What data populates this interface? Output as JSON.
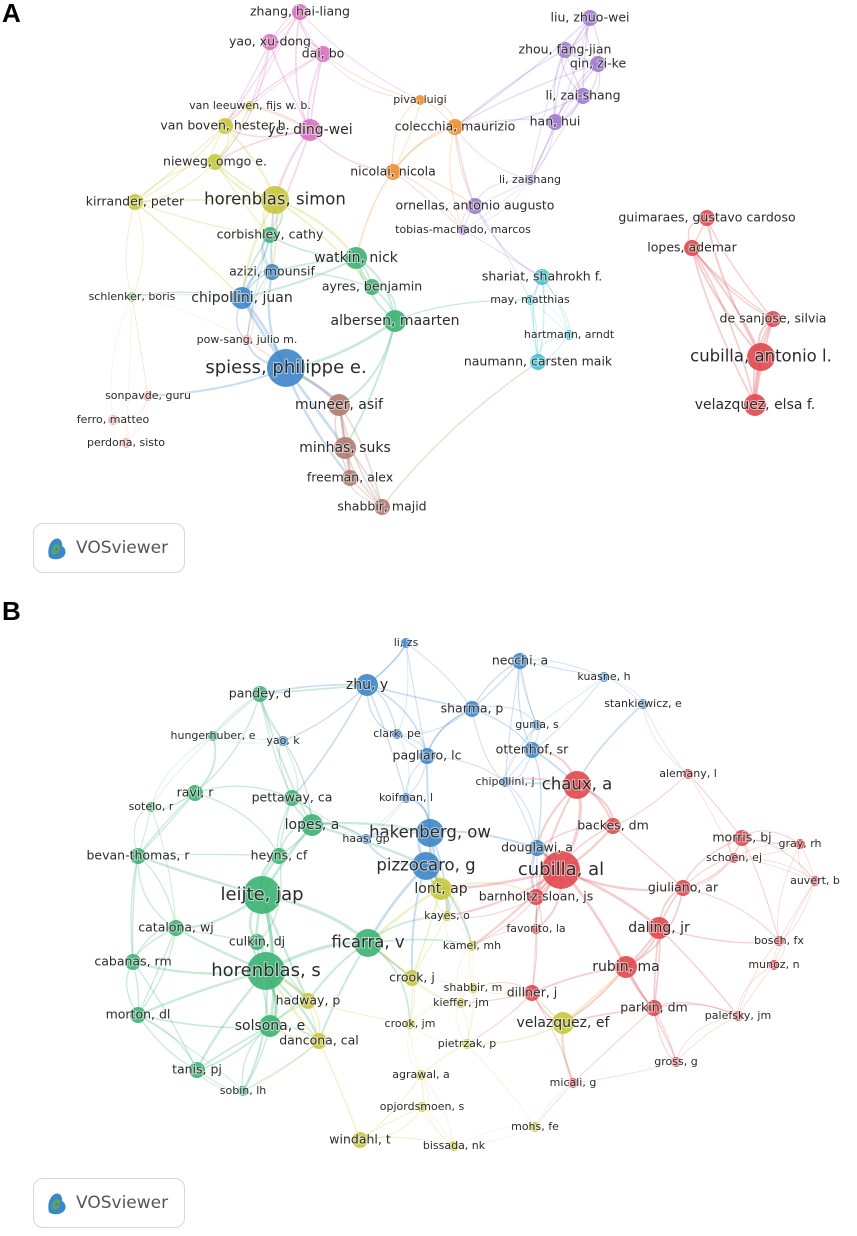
{
  "colors": {
    "red": "#e0474c",
    "green": "#3bb273",
    "blue": "#3c86c8",
    "yellow": "#c8c83a",
    "purple": "#a079cf",
    "orange": "#ef8e2c",
    "pink": "#d96fc0",
    "cyan": "#3cc2d3",
    "brown": "#b07a6e",
    "rose": "#f1a9a9",
    "lightgreen": "#8fd37a"
  },
  "watermark": {
    "label": "VOSviewer"
  },
  "panels": [
    {
      "letter": "A",
      "nodes": [
        {
          "label": "zhang, hai-liang",
          "c": "pink",
          "s": 1
        },
        {
          "label": "yao, xu-dong",
          "c": "pink",
          "s": 1
        },
        {
          "label": "dai, bo",
          "c": "pink",
          "s": 1
        },
        {
          "label": "ye, ding-wei",
          "c": "pink",
          "s": 2
        },
        {
          "label": "liu, zhuo-wei",
          "c": "purple",
          "s": 1
        },
        {
          "label": "zhou, fang-jian",
          "c": "purple",
          "s": 1
        },
        {
          "label": "qin, zi-ke",
          "c": "purple",
          "s": 1
        },
        {
          "label": "li, zai-shang",
          "c": "purple",
          "s": 1
        },
        {
          "label": "han, hui",
          "c": "purple",
          "s": 1
        },
        {
          "label": "li, zaishang",
          "c": "purple",
          "s": 0
        },
        {
          "label": "piva, luigi",
          "c": "orange",
          "s": 0
        },
        {
          "label": "colecchia, maurizio",
          "c": "orange",
          "s": 1
        },
        {
          "label": "nicolai, nicola",
          "c": "orange",
          "s": 1
        },
        {
          "label": "ornellas, antonio augusto",
          "c": "purple",
          "s": 1
        },
        {
          "label": "tobias-machado, marcos",
          "c": "purple",
          "s": 0
        },
        {
          "label": "van leeuwen, fijs w. b.",
          "c": "yellow",
          "s": 0
        },
        {
          "label": "van boven, hester h.",
          "c": "yellow",
          "s": 1
        },
        {
          "label": "nieweg, omgo e.",
          "c": "yellow",
          "s": 1
        },
        {
          "label": "kirrander, peter",
          "c": "yellow",
          "s": 1
        },
        {
          "label": "horenblas, simon",
          "c": "yellow",
          "s": 3
        },
        {
          "label": "corbishley, cathy",
          "c": "green",
          "s": 1
        },
        {
          "label": "watkin, nick",
          "c": "green",
          "s": 2
        },
        {
          "label": "azizi, mounsif",
          "c": "blue",
          "s": 1
        },
        {
          "label": "ayres, benjamin",
          "c": "green",
          "s": 1
        },
        {
          "label": "chipollini, juan",
          "c": "blue",
          "s": 2
        },
        {
          "label": "albersen, maarten",
          "c": "green",
          "s": 2
        },
        {
          "label": "schlenker, boris",
          "c": "lightgreen",
          "s": 0
        },
        {
          "label": "pow-sang, julio m.",
          "c": "rose",
          "s": 0
        },
        {
          "label": "spiess, philippe e.",
          "c": "blue",
          "s": 4
        },
        {
          "label": "muneer, asif",
          "c": "brown",
          "s": 2
        },
        {
          "label": "sonpavde, guru",
          "c": "rose",
          "s": 0
        },
        {
          "label": "ferro, matteo",
          "c": "rose",
          "s": 0
        },
        {
          "label": "perdona, sisto",
          "c": "rose",
          "s": 0
        },
        {
          "label": "minhas, suks",
          "c": "brown",
          "s": 2
        },
        {
          "label": "freeman, alex",
          "c": "brown",
          "s": 1
        },
        {
          "label": "shabbir, majid",
          "c": "brown",
          "s": 1
        },
        {
          "label": "shariat, shahrokh f.",
          "c": "cyan",
          "s": 1
        },
        {
          "label": "may, matthias",
          "c": "cyan",
          "s": 0
        },
        {
          "label": "hartmann, arndt",
          "c": "cyan",
          "s": 0
        },
        {
          "label": "naumann, carsten maik",
          "c": "cyan",
          "s": 1
        },
        {
          "label": "guimaraes, gustavo cardoso",
          "c": "red",
          "s": 1
        },
        {
          "label": "lopes, ademar",
          "c": "red",
          "s": 1
        },
        {
          "label": "de sanjose, silvia",
          "c": "red",
          "s": 1
        },
        {
          "label": "cubilla, antonio l.",
          "c": "red",
          "s": 3
        },
        {
          "label": "velazquez, elsa f.",
          "c": "red",
          "s": 2
        }
      ]
    },
    {
      "letter": "B",
      "nodes": [
        {
          "label": "li, zs",
          "c": "blue",
          "s": 0
        },
        {
          "label": "necchi, a",
          "c": "blue",
          "s": 1
        },
        {
          "label": "kuasne, h",
          "c": "blue",
          "s": 0
        },
        {
          "label": "zhu, y",
          "c": "blue",
          "s": 2
        },
        {
          "label": "pandey, d",
          "c": "green",
          "s": 1
        },
        {
          "label": "sharma, p",
          "c": "blue",
          "s": 1
        },
        {
          "label": "gunia, s",
          "c": "blue",
          "s": 0
        },
        {
          "label": "stankiewicz, e",
          "c": "blue",
          "s": 0
        },
        {
          "label": "clark, pe",
          "c": "blue",
          "s": 0
        },
        {
          "label": "hungerhuber, e",
          "c": "green",
          "s": 0
        },
        {
          "label": "yao, k",
          "c": "blue",
          "s": 0
        },
        {
          "label": "ottenhof, sr",
          "c": "blue",
          "s": 1
        },
        {
          "label": "pagliaro, lc",
          "c": "blue",
          "s": 1
        },
        {
          "label": "alemany, l",
          "c": "red",
          "s": 0
        },
        {
          "label": "chipollini, j",
          "c": "blue",
          "s": 0
        },
        {
          "label": "chaux, a",
          "c": "red",
          "s": 3
        },
        {
          "label": "ravi, r",
          "c": "green",
          "s": 1
        },
        {
          "label": "pettaway, ca",
          "c": "green",
          "s": 1
        },
        {
          "label": "koifman, l",
          "c": "blue",
          "s": 0
        },
        {
          "label": "sotelo, r",
          "c": "green",
          "s": 0
        },
        {
          "label": "lopes, a",
          "c": "green",
          "s": 2
        },
        {
          "label": "hakenberg, ow",
          "c": "blue",
          "s": 3
        },
        {
          "label": "backes, dm",
          "c": "red",
          "s": 1
        },
        {
          "label": "morris, bj",
          "c": "red",
          "s": 1
        },
        {
          "label": "gray, rh",
          "c": "red",
          "s": 0
        },
        {
          "label": "haas, gp",
          "c": "blue",
          "s": 0
        },
        {
          "label": "douglawi, a",
          "c": "blue",
          "s": 1
        },
        {
          "label": "bevan-thomas, r",
          "c": "green",
          "s": 1
        },
        {
          "label": "heyns, cf",
          "c": "green",
          "s": 1
        },
        {
          "label": "schoen, ej",
          "c": "red",
          "s": 0
        },
        {
          "label": "pizzocaro, g",
          "c": "blue",
          "s": 3
        },
        {
          "label": "cubilla, al",
          "c": "red",
          "s": 4
        },
        {
          "label": "auvert, b",
          "c": "red",
          "s": 0
        },
        {
          "label": "lont, ap",
          "c": "yellow",
          "s": 2
        },
        {
          "label": "leijte, jap",
          "c": "green",
          "s": 4
        },
        {
          "label": "giuliano, ar",
          "c": "red",
          "s": 1
        },
        {
          "label": "barnholtz-sloan, js",
          "c": "red",
          "s": 1
        },
        {
          "label": "kayes, o",
          "c": "yellow",
          "s": 0
        },
        {
          "label": "catalona, wj",
          "c": "green",
          "s": 1
        },
        {
          "label": "favorito, la",
          "c": "red",
          "s": 0
        },
        {
          "label": "daling, jr",
          "c": "red",
          "s": 2
        },
        {
          "label": "bosch, fx",
          "c": "red",
          "s": 0
        },
        {
          "label": "culkin, dj",
          "c": "green",
          "s": 1
        },
        {
          "label": "ficarra, v",
          "c": "green",
          "s": 3
        },
        {
          "label": "kamel, mh",
          "c": "yellow",
          "s": 0
        },
        {
          "label": "cabanas, rm",
          "c": "green",
          "s": 1
        },
        {
          "label": "munoz, n",
          "c": "red",
          "s": 0
        },
        {
          "label": "rubin, ma",
          "c": "red",
          "s": 2
        },
        {
          "label": "horenblas, s",
          "c": "green",
          "s": 4
        },
        {
          "label": "crook, j",
          "c": "yellow",
          "s": 1
        },
        {
          "label": "shabbir, m",
          "c": "yellow",
          "s": 0
        },
        {
          "label": "dillner, j",
          "c": "red",
          "s": 1
        },
        {
          "label": "hadway, p",
          "c": "yellow",
          "s": 1
        },
        {
          "label": "kieffer, jm",
          "c": "yellow",
          "s": 0
        },
        {
          "label": "parkin, dm",
          "c": "red",
          "s": 1
        },
        {
          "label": "morton, dl",
          "c": "green",
          "s": 1
        },
        {
          "label": "palefsky, jm",
          "c": "red",
          "s": 0
        },
        {
          "label": "solsona, e",
          "c": "green",
          "s": 2
        },
        {
          "label": "velazquez, ef",
          "c": "yellow",
          "s": 2
        },
        {
          "label": "crook, jm",
          "c": "yellow",
          "s": 0
        },
        {
          "label": "dancona, cal",
          "c": "yellow",
          "s": 1
        },
        {
          "label": "pietrzak, p",
          "c": "yellow",
          "s": 0
        },
        {
          "label": "gross, g",
          "c": "red",
          "s": 0
        },
        {
          "label": "tanis, pj",
          "c": "green",
          "s": 1
        },
        {
          "label": "agrawal, a",
          "c": "yellow",
          "s": 0
        },
        {
          "label": "micali, g",
          "c": "red",
          "s": 0
        },
        {
          "label": "sobin, lh",
          "c": "green",
          "s": 0
        },
        {
          "label": "opjordsmoen, s",
          "c": "yellow",
          "s": 0
        },
        {
          "label": "mohs, fe",
          "c": "yellow",
          "s": 0
        },
        {
          "label": "windahl, t",
          "c": "yellow",
          "s": 1
        },
        {
          "label": "bissada, nk",
          "c": "yellow",
          "s": 0
        }
      ]
    }
  ]
}
